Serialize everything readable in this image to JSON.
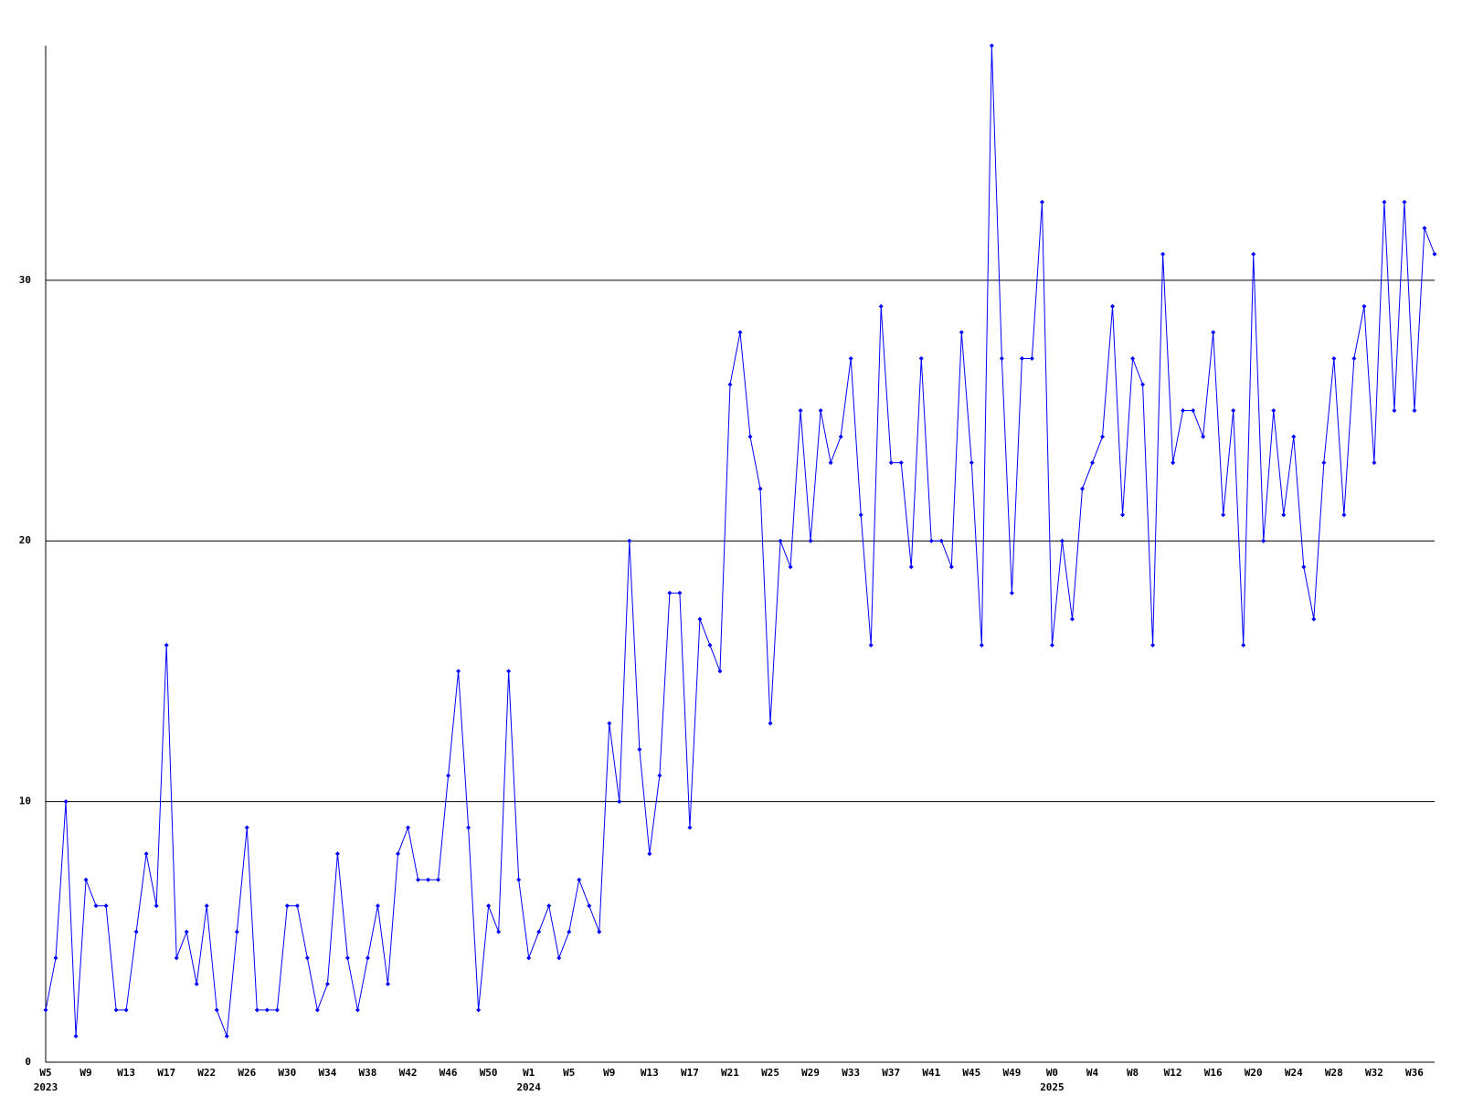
{
  "chart_data": {
    "type": "line",
    "color": "#0000ff",
    "grid": true,
    "ylim": [
      0,
      39
    ],
    "yticks": [
      0,
      10,
      20,
      30
    ],
    "categories": [
      "W5",
      null,
      null,
      null,
      "W9",
      null,
      null,
      null,
      "W13",
      null,
      null,
      null,
      "W17",
      null,
      null,
      null,
      "W22",
      null,
      null,
      null,
      "W26",
      null,
      null,
      null,
      "W30",
      null,
      null,
      null,
      "W34",
      null,
      null,
      null,
      "W38",
      null,
      null,
      null,
      "W42",
      null,
      null,
      null,
      "W46",
      null,
      null,
      null,
      "W50",
      null,
      null,
      null,
      "W1",
      null,
      null,
      null,
      "W5",
      null,
      null,
      null,
      "W9",
      null,
      null,
      null,
      "W13",
      null,
      null,
      null,
      "W17",
      null,
      null,
      null,
      "W21",
      null,
      null,
      null,
      "W25",
      null,
      null,
      null,
      "W29",
      null,
      null,
      null,
      "W33",
      null,
      null,
      null,
      "W37",
      null,
      null,
      null,
      "W41",
      null,
      null,
      null,
      "W45",
      null,
      null,
      null,
      "W49",
      null,
      null,
      null,
      "W0",
      null,
      null,
      null,
      "W4",
      null,
      null,
      null,
      "W8",
      null,
      null,
      null,
      "W12",
      null,
      null,
      null,
      "W16",
      null,
      null,
      null,
      "W20",
      null,
      null,
      null,
      "W24",
      null,
      null,
      null,
      "W28",
      null,
      null,
      null,
      "W32",
      null,
      null,
      null,
      "W36",
      null,
      null
    ],
    "years": [
      "2023",
      null,
      null,
      null,
      null,
      null,
      null,
      null,
      null,
      null,
      null,
      null,
      null,
      null,
      null,
      null,
      null,
      null,
      null,
      null,
      null,
      null,
      null,
      null,
      null,
      null,
      null,
      null,
      null,
      null,
      null,
      null,
      null,
      null,
      null,
      null,
      null,
      null,
      null,
      null,
      null,
      null,
      null,
      null,
      null,
      null,
      null,
      null,
      "2024",
      null,
      null,
      null,
      null,
      null,
      null,
      null,
      null,
      null,
      null,
      null,
      null,
      null,
      null,
      null,
      null,
      null,
      null,
      null,
      null,
      null,
      null,
      null,
      null,
      null,
      null,
      null,
      null,
      null,
      null,
      null,
      null,
      null,
      null,
      null,
      null,
      null,
      null,
      null,
      null,
      null,
      null,
      null,
      null,
      null,
      null,
      null,
      null,
      null,
      null,
      null,
      "2025",
      null,
      null,
      null,
      null,
      null,
      null,
      null,
      null,
      null,
      null,
      null,
      null,
      null,
      null,
      null,
      null,
      null,
      null,
      null,
      null,
      null,
      null,
      null,
      null,
      null,
      null,
      null,
      null,
      null,
      null,
      null,
      null,
      null,
      null,
      null,
      null,
      null
    ],
    "values": [
      2,
      4,
      10,
      1,
      7,
      6,
      6,
      2,
      2,
      5,
      8,
      6,
      16,
      4,
      5,
      3,
      6,
      2,
      1,
      5,
      9,
      2,
      2,
      2,
      6,
      6,
      4,
      2,
      3,
      8,
      4,
      2,
      4,
      6,
      3,
      8,
      9,
      7,
      7,
      7,
      11,
      15,
      9,
      2,
      6,
      5,
      15,
      7,
      4,
      5,
      6,
      4,
      5,
      7,
      6,
      5,
      13,
      10,
      20,
      12,
      8,
      11,
      18,
      18,
      9,
      17,
      16,
      15,
      26,
      28,
      24,
      22,
      13,
      20,
      19,
      25,
      20,
      25,
      23,
      24,
      27,
      21,
      16,
      29,
      23,
      23,
      19,
      27,
      20,
      20,
      19,
      28,
      23,
      16,
      39,
      27,
      18,
      27,
      27,
      33,
      16,
      20,
      17,
      22,
      23,
      24,
      29,
      21,
      27,
      26,
      16,
      31,
      23,
      25,
      25,
      24,
      28,
      21,
      25,
      16,
      31,
      20,
      25,
      21,
      24,
      19,
      17,
      23,
      27,
      21,
      27,
      29,
      23,
      33,
      25,
      33,
      25,
      32,
      31
    ]
  }
}
